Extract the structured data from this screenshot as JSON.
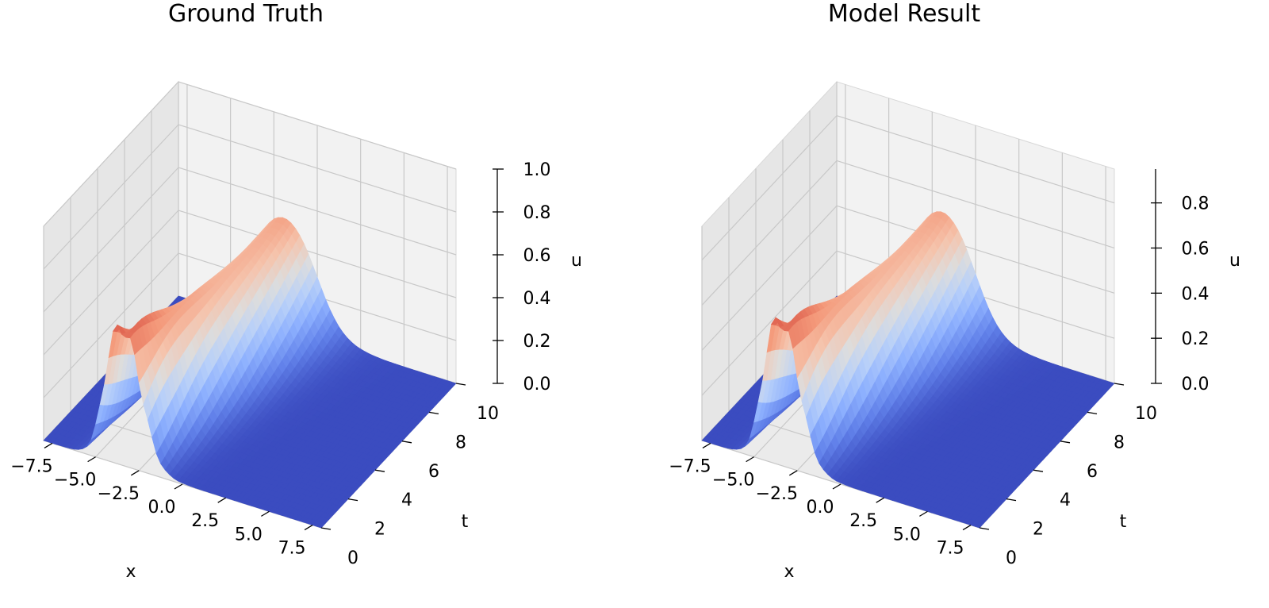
{
  "chart_data": [
    {
      "type": "surface",
      "title": "Ground Truth",
      "xlabel": "x",
      "ylabel": "t",
      "zlabel": "u",
      "x_ticks": [
        "−7.5",
        "−5.0",
        "−2.5",
        "0.0",
        "2.5",
        "5.0",
        "7.5"
      ],
      "y_ticks": [
        "0",
        "2",
        "4",
        "6",
        "8",
        "10"
      ],
      "z_ticks": [
        "0.0",
        "0.2",
        "0.4",
        "0.6",
        "0.8",
        "1.0"
      ],
      "xlim": [
        -8,
        8
      ],
      "ylim": [
        0,
        10
      ],
      "zlim": [
        0,
        1.0
      ],
      "colormap": "coolwarm",
      "grid": true,
      "surface": {
        "description_values": "u(x,t) rises from 0 near x=-2 to a ridge; peak about 0.72 at t=0, x=-5; ridge centre drifts from x=-3.5 at t=0 to x=-1.5 at t=10; ridge height about 0.45 near t=5 and 0.55 at t=10",
        "peak_u": 0.72,
        "ridge_u_t10": 0.55
      }
    },
    {
      "type": "surface",
      "title": "Model Result",
      "xlabel": "x",
      "ylabel": "t",
      "zlabel": "u",
      "x_ticks": [
        "−7.5",
        "−5.0",
        "−2.5",
        "0.0",
        "2.5",
        "5.0",
        "7.5"
      ],
      "y_ticks": [
        "0",
        "2",
        "4",
        "6",
        "8",
        "10"
      ],
      "z_ticks": [
        "0.0",
        "0.2",
        "0.4",
        "0.6",
        "0.8"
      ],
      "xlim": [
        -8,
        8
      ],
      "ylim": [
        0,
        10
      ],
      "zlim": [
        0,
        0.95
      ],
      "colormap": "coolwarm",
      "grid": true,
      "surface": {
        "peak_u": 0.72,
        "ridge_u_t10": 0.55
      }
    }
  ]
}
